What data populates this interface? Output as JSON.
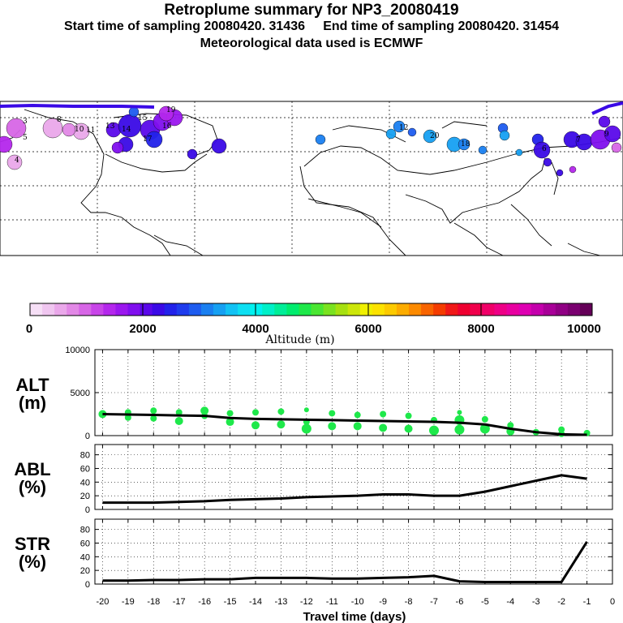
{
  "header": {
    "title": "Retroplume summary for NP3_20080419",
    "start_label": "Start time of sampling 20080420. 31436",
    "end_label": "End time of sampling 20080420. 31454",
    "met_label": "Meteorological data used is ECMWF"
  },
  "colorbar": {
    "label": "Altitude (m)",
    "ticks": [
      "0",
      "2000",
      "4000",
      "6000",
      "8000",
      "10000"
    ],
    "range": [
      0,
      10000
    ],
    "colors": [
      "#f6dff6",
      "#f0c6f0",
      "#eaa8ea",
      "#e288e6",
      "#d766e6",
      "#c845e8",
      "#b427ec",
      "#9b17ee",
      "#800fee",
      "#5a08ea",
      "#3a0ae6",
      "#2222ea",
      "#1f3ced",
      "#1e5cef",
      "#1a7ff0",
      "#16a0f2",
      "#12c2f4",
      "#0edff2",
      "#00f2f0",
      "#00f0c8",
      "#00ee98",
      "#00ec6e",
      "#1ee84a",
      "#4ae632",
      "#7ae220",
      "#a6e010",
      "#cce60a",
      "#f0f000",
      "#fce200",
      "#fcca00",
      "#fcac00",
      "#fc8a00",
      "#f86400",
      "#f43c00",
      "#f01818",
      "#ee0030",
      "#f0004c",
      "#f00068",
      "#ee0086",
      "#e800a0",
      "#de00b2",
      "#c400ac",
      "#a80098",
      "#900084",
      "#7a0070",
      "#640058"
    ]
  },
  "map": {
    "labels": [
      "3",
      "8",
      "10",
      "11",
      "13",
      "14",
      "5",
      "4",
      "15",
      "16",
      "17",
      "19",
      "12",
      "20",
      "18",
      "6",
      "7",
      "9"
    ]
  },
  "chart_data": [
    {
      "type": "line",
      "name": "ALT",
      "ylabel": "ALT\n(m)",
      "yticks": [
        0,
        5000,
        10000
      ],
      "ylim": [
        0,
        10000
      ],
      "x": [
        -20,
        -19,
        -18,
        -17,
        -16,
        -15,
        -14,
        -13,
        -12,
        -11,
        -10,
        -9,
        -8,
        -7,
        -6,
        -5,
        -4,
        -3,
        -2,
        -1
      ],
      "values": [
        2500,
        2450,
        2400,
        2350,
        2300,
        2050,
        1950,
        1900,
        1850,
        1800,
        1750,
        1700,
        1650,
        1600,
        1500,
        1300,
        800,
        400,
        150,
        100
      ],
      "scatter": [
        {
          "x": -20,
          "y": 2500,
          "r": 5
        },
        {
          "x": -19,
          "y": 2700,
          "r": 4
        },
        {
          "x": -19,
          "y": 2100,
          "r": 4
        },
        {
          "x": -18,
          "y": 2900,
          "r": 4
        },
        {
          "x": -18,
          "y": 2000,
          "r": 4
        },
        {
          "x": -17,
          "y": 2700,
          "r": 4
        },
        {
          "x": -17,
          "y": 1700,
          "r": 5
        },
        {
          "x": -16,
          "y": 2900,
          "r": 5
        },
        {
          "x": -16,
          "y": 2300,
          "r": 4
        },
        {
          "x": -15,
          "y": 2600,
          "r": 4
        },
        {
          "x": -15,
          "y": 1600,
          "r": 5
        },
        {
          "x": -14,
          "y": 2700,
          "r": 4
        },
        {
          "x": -14,
          "y": 1200,
          "r": 5
        },
        {
          "x": -13,
          "y": 2800,
          "r": 4
        },
        {
          "x": -13,
          "y": 1300,
          "r": 5
        },
        {
          "x": -12,
          "y": 3000,
          "r": 3
        },
        {
          "x": -12,
          "y": 1600,
          "r": 4
        },
        {
          "x": -12,
          "y": 800,
          "r": 6
        },
        {
          "x": -11,
          "y": 2600,
          "r": 4
        },
        {
          "x": -11,
          "y": 1100,
          "r": 5
        },
        {
          "x": -10,
          "y": 2400,
          "r": 4
        },
        {
          "x": -10,
          "y": 1100,
          "r": 5
        },
        {
          "x": -9,
          "y": 2500,
          "r": 4
        },
        {
          "x": -9,
          "y": 900,
          "r": 5
        },
        {
          "x": -8,
          "y": 2300,
          "r": 4
        },
        {
          "x": -8,
          "y": 800,
          "r": 5
        },
        {
          "x": -7,
          "y": 1800,
          "r": 4
        },
        {
          "x": -7,
          "y": 600,
          "r": 6
        },
        {
          "x": -6,
          "y": 2700,
          "r": 3
        },
        {
          "x": -6,
          "y": 1800,
          "r": 6
        },
        {
          "x": -6,
          "y": 700,
          "r": 6
        },
        {
          "x": -5,
          "y": 1900,
          "r": 4
        },
        {
          "x": -5,
          "y": 800,
          "r": 6
        },
        {
          "x": -4,
          "y": 1200,
          "r": 4
        },
        {
          "x": -4,
          "y": 500,
          "r": 5
        },
        {
          "x": -3,
          "y": 400,
          "r": 4
        },
        {
          "x": -2,
          "y": 700,
          "r": 4
        },
        {
          "x": -2,
          "y": 200,
          "r": 4
        },
        {
          "x": -1,
          "y": 300,
          "r": 4
        }
      ]
    },
    {
      "type": "line",
      "name": "ABL",
      "ylabel": "ABL\n(%)",
      "yticks": [
        0,
        20,
        40,
        60,
        80
      ],
      "ylim": [
        0,
        95
      ],
      "x": [
        -20,
        -19,
        -18,
        -17,
        -16,
        -15,
        -14,
        -13,
        -12,
        -11,
        -10,
        -9,
        -8,
        -7,
        -6,
        -5,
        -4,
        -3,
        -2,
        -1
      ],
      "values": [
        10,
        10,
        10,
        11,
        12,
        14,
        15,
        16,
        18,
        19,
        20,
        22,
        22,
        20,
        20,
        26,
        34,
        42,
        50,
        45
      ]
    },
    {
      "type": "line",
      "name": "STR",
      "ylabel": "STR\n(%)",
      "xlabel": "Travel time (days)",
      "yticks": [
        0,
        20,
        40,
        60,
        80
      ],
      "ylim": [
        0,
        95
      ],
      "xticks": [
        -20,
        -19,
        -18,
        -17,
        -16,
        -15,
        -14,
        -13,
        -12,
        -11,
        -10,
        -9,
        -8,
        -7,
        -6,
        -5,
        -4,
        -3,
        -2,
        -1,
        0
      ],
      "x": [
        -20,
        -19,
        -18,
        -17,
        -16,
        -15,
        -14,
        -13,
        -12,
        -11,
        -10,
        -9,
        -8,
        -7,
        -6,
        -5,
        -4,
        -3,
        -2,
        -1
      ],
      "values": [
        5,
        5,
        6,
        6,
        7,
        7,
        9,
        9,
        9,
        8,
        8,
        9,
        10,
        12,
        4,
        3,
        3,
        3,
        3,
        62
      ]
    }
  ]
}
